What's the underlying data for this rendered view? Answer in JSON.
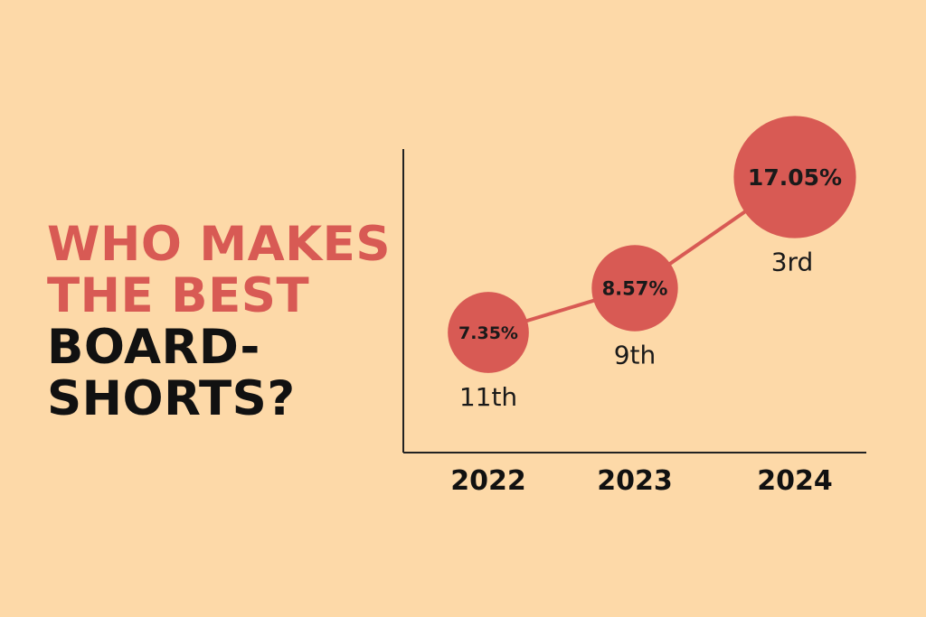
{
  "headline": {
    "line1": "WHO MAKES",
    "line2": "THE BEST",
    "line3": "BOARD-",
    "line4": "SHORTS?"
  },
  "colors": {
    "background": "#fdd9a8",
    "accent": "#d85a54",
    "text": "#111111"
  },
  "chart_data": {
    "type": "line",
    "title": "",
    "xlabel": "",
    "ylabel": "",
    "categories": [
      "2022",
      "2023",
      "2024"
    ],
    "series": [
      {
        "values": [
          7.35,
          8.57,
          17.05
        ],
        "value_labels": [
          "7.35%",
          "8.57%",
          "17.05%"
        ],
        "rank_labels": [
          "11th",
          "9th",
          "3rd"
        ]
      }
    ],
    "bubble_size_by_value": true,
    "grid": false,
    "legend": "none"
  }
}
